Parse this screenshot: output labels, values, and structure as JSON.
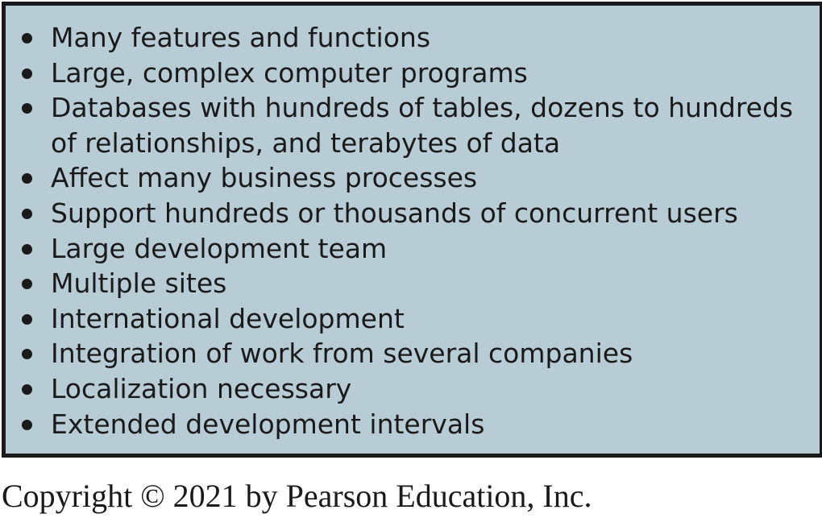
{
  "panel": {
    "items": [
      "Many features and functions",
      "Large, complex computer programs",
      "Databases with hundreds of tables, dozens to hundreds of relationships, and terabytes of data",
      "Affect many business processes",
      "Support hundreds or thousands of concurrent users",
      "Large development team",
      "Multiple sites",
      "International development",
      "Integration of work from several companies",
      "Localization necessary",
      "Extended development intervals"
    ]
  },
  "footer": {
    "copyright": "Copyright © 2021 by Pearson Education, Inc."
  },
  "colors": {
    "panel_background": "#b8ccd6",
    "border": "#1a1a1a",
    "text": "#1a1a1a"
  }
}
